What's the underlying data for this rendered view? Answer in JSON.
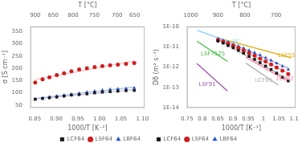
{
  "chart_data": [
    {
      "type": "scatter",
      "xlabel": "1000/T [K⁻¹]",
      "ylabel": "σ [S cm⁻¹]",
      "x2label": "T [°C]",
      "xlim": [
        0.84,
        1.105
      ],
      "ylim": [
        40,
        370
      ],
      "xticks": [
        0.85,
        {
          "value": 0.9,
          "label": "0.90"
        },
        0.95,
        {
          "value": 1,
          "label": "1.00"
        },
        1.05,
        {
          "value": 1.1,
          "label": "1.10"
        }
      ],
      "yticks": [
        50,
        100,
        150,
        200,
        250,
        300,
        350
      ],
      "x2lim": [
        0.84,
        1.105
      ],
      "x2ticks": [
        {
          "value": 0.851,
          "label": "900"
        },
        {
          "value": 0.893,
          "label": "850"
        },
        {
          "value": 0.939,
          "label": "800"
        },
        {
          "value": 0.988,
          "label": "750"
        },
        {
          "value": 1.041,
          "label": "700"
        },
        {
          "value": 1.082,
          "label": "650"
        }
      ],
      "grid": false,
      "legend": "lower right",
      "series": [
        {
          "type": "line",
          "color": "#bbbbdd",
          "x": [
            0.851,
            1.081
          ],
          "values": [
            75.43,
            113.27
          ]
        },
        {
          "type": "line",
          "color": "#ffbbbb",
          "x": [
            0.851,
            1.081
          ],
          "values": [
            153.97,
            229.87
          ]
        },
        {
          "type": "line",
          "color": "#aabbee",
          "x": [
            0.851,
            1.081
          ],
          "values": [
            76.99,
            123.77
          ]
        },
        {
          "name": "LCF64",
          "type": "scatter",
          "marker": "square",
          "color": "#1a1a1a",
          "x": [
            0.851,
            0.868,
            0.884,
            0.901,
            0.918,
            0.935,
            0.953,
            0.971,
            0.989,
            1.007,
            1.025,
            1.043,
            1.062,
            1.081
          ],
          "values": [
            74,
            77,
            80,
            83,
            87,
            91,
            93,
            96,
            100,
            103,
            105,
            107,
            109,
            110
          ]
        },
        {
          "name": "LSF64",
          "type": "scatter",
          "marker": "circle",
          "color": "#cc2020",
          "x": [
            0.851,
            0.868,
            0.884,
            0.901,
            0.918,
            0.935,
            0.953,
            0.971,
            0.989,
            1.007,
            1.025,
            1.043,
            1.062,
            1.081
          ],
          "values": [
            142,
            155,
            163,
            172,
            180,
            188,
            195,
            200,
            205,
            209,
            212,
            215,
            218,
            221
          ]
        },
        {
          "name": "LBF64",
          "type": "scatter",
          "marker": "triangle",
          "color": "#2255cc",
          "x": [
            0.851,
            0.868,
            0.884,
            0.901,
            0.918,
            0.935,
            0.953,
            0.971,
            0.989,
            1.007,
            1.025,
            1.043,
            1.062,
            1.081
          ],
          "values": [
            75,
            79,
            83,
            87,
            91,
            95,
            99,
            103,
            107,
            111,
            114,
            116,
            118,
            120
          ]
        }
      ]
    },
    {
      "type": "scatter",
      "xlabel": "1000/T [K⁻¹]",
      "ylabel": "Dδ (m² s⁻¹)",
      "x2label": "T [°C]",
      "log": "y",
      "xlim": [
        0.75,
        1.105
      ],
      "ylim": [
        1e-14,
        1e-10
      ],
      "xticks": [
        0.75,
        0.8,
        0.85,
        0.9,
        0.95,
        1,
        1.05,
        1.1
      ],
      "yticks": [
        {
          "value": 1e-14,
          "label": "1E-14"
        },
        {
          "value": 1e-13,
          "label": "1E-13"
        },
        {
          "value": 1e-12,
          "label": "1E-12"
        },
        {
          "value": 1e-11,
          "label": "1E-11"
        },
        {
          "value": 1e-10,
          "label": "1E-10"
        }
      ],
      "x2lim": [
        0.75,
        1.105
      ],
      "x2ticks": [
        {
          "value": 0.762,
          "label": "1000"
        },
        {
          "value": 0.851,
          "label": "900"
        },
        {
          "value": 0.939,
          "label": "800"
        },
        {
          "value": 1.041,
          "label": "700"
        }
      ],
      "grid": false,
      "legend": "lower left",
      "series": [
        {
          "type": "line",
          "color": "#88ccff",
          "x": [
            0.782,
            0.892
          ],
          "values": [
            6.6069e-11,
            1.6596e-11
          ]
        },
        {
          "type": "line",
          "color": "#ddaa00",
          "x": [
            0.872,
            1.092
          ],
          "values": [
            2.2387e-11,
            2.8184e-12
          ]
        },
        {
          "type": "line",
          "color": "#44bb44",
          "x": [
            0.782,
            0.882
          ],
          "values": [
            1.9055e-11,
            1.9055e-12
          ]
        },
        {
          "type": "line",
          "color": "#9955aa",
          "x": [
            0.782,
            0.882
          ],
          "values": [
            1.5136e-12,
            6.6069e-14
          ]
        },
        {
          "type": "line",
          "color": "#aaaaaa",
          "x": [
            0.942,
            1.048
          ],
          "values": [
            1.5849e-12,
            1.3183e-13
          ]
        },
        {
          "type": "line",
          "color": "#ff88aa",
          "x": [
            0.942,
            1.082
          ],
          "values": [
            3.02e-12,
            1.9055e-13
          ]
        },
        {
          "type": "line",
          "color": "#aaaaaa",
          "x": [
            0.851,
            1.081
          ],
          "values": [
            2.3049e-11,
            2.4323e-13
          ]
        },
        {
          "type": "line",
          "color": "#ffaaaa",
          "x": [
            0.851,
            1.081
          ],
          "values": [
            2.5753e-11,
            5.1081e-13
          ]
        },
        {
          "type": "line",
          "color": "#aaaadd",
          "x": [
            0.851,
            1.081
          ],
          "values": [
            2.8636e-11,
            8.8402e-13
          ]
        },
        {
          "name": "LCF64",
          "type": "scatter",
          "marker": "square",
          "color": "#1a1a1a",
          "x": [
            0.851,
            0.868,
            0.884,
            0.901,
            0.918,
            0.935,
            0.953,
            0.971,
            0.989,
            1.007,
            1.025,
            1.043,
            1.062,
            1.081
          ],
          "values": [
            1.9055e-11,
            1.5136e-11,
            1.1482e-11,
            8.9125e-12,
            6.6069e-12,
            4.7863e-12,
            3.3884e-12,
            2.3988e-12,
            1.6596e-12,
            1.122e-12,
            7.5858e-13,
            5.0119e-13,
            3.1623e-13,
            2.0893e-13
          ]
        },
        {
          "name": "LSF64",
          "type": "scatter",
          "marker": "circle",
          "color": "#cc2020",
          "x": [
            0.851,
            0.868,
            0.884,
            0.901,
            0.918,
            0.935,
            0.953,
            0.971,
            0.989,
            1.007,
            1.025,
            1.043,
            1.062,
            1.081
          ],
          "values": [
            2.1878e-11,
            1.8197e-11,
            1.4454e-11,
            1.122e-11,
            8.7096e-12,
            6.6069e-12,
            4.8978e-12,
            3.6308e-12,
            2.6303e-12,
            1.9055e-12,
            1.349e-12,
            9.5499e-13,
            6.6069e-13,
            4.4668e-13
          ]
        },
        {
          "name": "LBF64",
          "type": "scatter",
          "marker": "triangle",
          "color": "#2255cc",
          "x": [
            0.851,
            0.868,
            0.884,
            0.901,
            0.918,
            0.935,
            0.953,
            0.971,
            0.989,
            1.007,
            1.025,
            1.043,
            1.062,
            1.081
          ],
          "values": [
            2.5119e-11,
            2.0893e-11,
            1.6982e-11,
            1.349e-11,
            1.0715e-11,
            8.5114e-12,
            6.6069e-12,
            5.1286e-12,
            3.8905e-12,
            2.884e-12,
            2.138e-12,
            1.5488e-12,
            1.0965e-12,
            7.5858e-13
          ]
        }
      ],
      "annotations": [
        {
          "text": "SF",
          "x": 0.898,
          "y": 1.7378e-11,
          "color": "#88ccff"
        },
        {
          "text": "LSF55",
          "x": 1.048,
          "y": 3.8019e-12,
          "color": "#ddaa00"
        },
        {
          "text": "LSF7525",
          "x": 0.795,
          "y": 4.4668e-12,
          "color": "#44bb44"
        },
        {
          "text": "LSF91",
          "x": 0.788,
          "y": 1.4125e-13,
          "color": "#9955aa"
        },
        {
          "text": "LCF91",
          "x": 0.972,
          "y": 2.0893e-13,
          "color": "#aaaaaa"
        },
        {
          "text": "LCF82",
          "x": 1.042,
          "y": 2.6303e-13,
          "color": "#ff88aa"
        }
      ]
    }
  ]
}
